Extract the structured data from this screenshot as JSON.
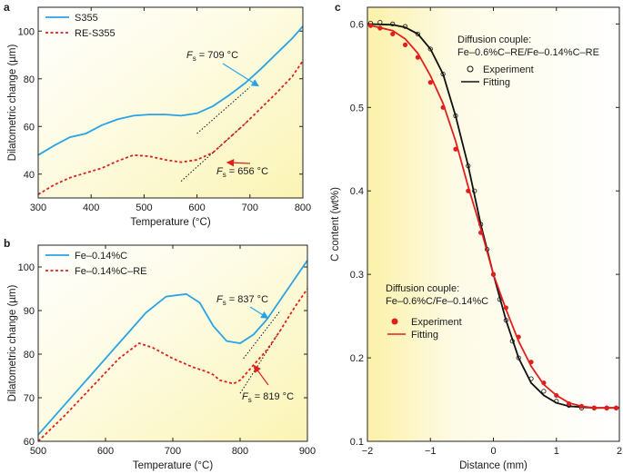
{
  "colors": {
    "blue": "#2aa3e6",
    "red": "#e0201c",
    "black": "#111111",
    "bg_yellow": "#fbf5b8",
    "bg_white": "#ffffff"
  },
  "chart_data": [
    {
      "panel": "a",
      "type": "line",
      "xlabel": "Temperature (°C)",
      "ylabel": "Dilatometric change (µm)",
      "xlim": [
        300,
        800
      ],
      "ylim": [
        30,
        110
      ],
      "xticks": [
        300,
        400,
        500,
        600,
        700,
        800
      ],
      "yticks": [
        40,
        60,
        80,
        100
      ],
      "grid": false,
      "legend_placement": "top-left",
      "series": [
        {
          "name": "S355",
          "style": "solid",
          "color": "blue",
          "x": [
            300,
            330,
            360,
            390,
            420,
            450,
            480,
            510,
            540,
            570,
            600,
            630,
            660,
            690,
            720,
            750,
            780,
            800
          ],
          "y": [
            48,
            52,
            55.5,
            57,
            60.5,
            63,
            64.5,
            65,
            65,
            64.5,
            65.5,
            68.5,
            73,
            78,
            84,
            90.5,
            97,
            102
          ]
        },
        {
          "name": "RE-S355",
          "style": "dashed",
          "color": "red",
          "x": [
            300,
            330,
            360,
            390,
            420,
            450,
            480,
            510,
            540,
            570,
            600,
            630,
            660,
            690,
            720,
            750,
            780,
            800
          ],
          "y": [
            31.5,
            35.5,
            38.5,
            40.5,
            42.5,
            45.5,
            48,
            47.5,
            46,
            45,
            46,
            49,
            55,
            61,
            67.5,
            74,
            81,
            87.5
          ]
        }
      ],
      "tangents": [
        {
          "x": [
            600,
            700
          ],
          "y": [
            57,
            76.5
          ]
        },
        {
          "x": [
            570,
            700
          ],
          "y": [
            37,
            63
          ]
        }
      ],
      "annotations": [
        {
          "var": "F",
          "sub": "s",
          "text": " = 709 °C",
          "x": 709,
          "y": 78
        },
        {
          "var": "F",
          "sub": "s",
          "text": " = 656 °C",
          "x": 656,
          "y": 46
        }
      ]
    },
    {
      "panel": "b",
      "type": "line",
      "xlabel": "Temperature (°C)",
      "ylabel": "Dilatometric change (µm)",
      "xlim": [
        500,
        900
      ],
      "ylim": [
        60,
        105
      ],
      "xticks": [
        500,
        600,
        700,
        800,
        900
      ],
      "yticks": [
        60,
        70,
        80,
        90,
        100
      ],
      "grid": false,
      "legend_placement": "top-left",
      "series": [
        {
          "name": "Fe–0.14%C",
          "style": "solid",
          "color": "blue",
          "x": [
            500,
            540,
            580,
            620,
            660,
            690,
            720,
            740,
            760,
            780,
            800,
            820,
            840,
            860,
            880,
            900
          ],
          "y": [
            61.5,
            68.5,
            75.5,
            82.5,
            89.5,
            93.2,
            93.8,
            91.8,
            86.5,
            83,
            82.5,
            84.5,
            88,
            92.5,
            97,
            101.5
          ]
        },
        {
          "name": "Fe–0.14%C–RE",
          "style": "dashed",
          "color": "red",
          "x": [
            500,
            540,
            580,
            620,
            650,
            670,
            700,
            730,
            750,
            760,
            770,
            790,
            800,
            820,
            840,
            860,
            880,
            900
          ],
          "y": [
            60,
            66,
            72.5,
            79,
            82.5,
            81.5,
            79,
            77,
            76,
            75.3,
            74,
            73.2,
            74,
            77.5,
            81,
            85.5,
            90.5,
            95
          ]
        }
      ],
      "tangents": [
        {
          "x": [
            805,
            860
          ],
          "y": [
            79,
            90
          ]
        },
        {
          "x": [
            800,
            860
          ],
          "y": [
            71,
            85.5
          ]
        }
      ],
      "annotations": [
        {
          "var": "F",
          "sub": "s",
          "text": " = 837 °C",
          "x": 837,
          "y": 88
        },
        {
          "var": "F",
          "sub": "s",
          "text": " = 819 °C",
          "x": 819,
          "y": 78
        }
      ]
    },
    {
      "panel": "c",
      "type": "scatter",
      "xlabel": "Distance (mm)",
      "ylabel": "C content (wt%)",
      "xlim": [
        -2,
        2
      ],
      "ylim": [
        0.1,
        0.62
      ],
      "xticks": [
        -2,
        -1,
        0,
        1,
        2
      ],
      "yticks": [
        0.1,
        0.2,
        0.3,
        0.4,
        0.5,
        0.6
      ],
      "grid": false,
      "series": [
        {
          "group": "Diffusion couple: Fe–0.6%C–RE/Fe–0.14%C–RE",
          "name": "Experiment",
          "style": "open-circle",
          "color": "black",
          "x": [
            -1.95,
            -1.8,
            -1.6,
            -1.4,
            -1.2,
            -1.0,
            -0.8,
            -0.6,
            -0.4,
            -0.3,
            -0.2,
            -0.1,
            0.0,
            0.1,
            0.2,
            0.3,
            0.4,
            0.6,
            0.8,
            1.0,
            1.2,
            1.4,
            1.6,
            1.8,
            1.95
          ],
          "y": [
            0.601,
            0.602,
            0.6,
            0.597,
            0.588,
            0.57,
            0.54,
            0.49,
            0.43,
            0.4,
            0.36,
            0.33,
            0.3,
            0.27,
            0.245,
            0.22,
            0.2,
            0.175,
            0.16,
            0.148,
            0.143,
            0.14,
            0.14,
            0.14,
            0.14
          ]
        },
        {
          "group": "Diffusion couple: Fe–0.6%C–RE/Fe–0.14%C–RE",
          "name": "Fitting",
          "style": "solid",
          "color": "black",
          "x": [
            -2.0,
            -1.6,
            -1.4,
            -1.2,
            -1.0,
            -0.8,
            -0.6,
            -0.4,
            -0.2,
            0.0,
            0.2,
            0.4,
            0.6,
            0.8,
            1.0,
            1.2,
            1.4,
            1.6,
            2.0
          ],
          "y": [
            0.6,
            0.599,
            0.596,
            0.588,
            0.57,
            0.54,
            0.49,
            0.43,
            0.36,
            0.3,
            0.245,
            0.2,
            0.17,
            0.155,
            0.146,
            0.142,
            0.141,
            0.14,
            0.14
          ]
        },
        {
          "group": "Diffusion couple: Fe–0.6%C/Fe–0.14%C",
          "name": "Experiment",
          "style": "filled-circle",
          "color": "red",
          "x": [
            -1.95,
            -1.8,
            -1.6,
            -1.4,
            -1.2,
            -1.0,
            -0.8,
            -0.6,
            -0.4,
            -0.2,
            0.0,
            0.2,
            0.4,
            0.6,
            0.8,
            1.0,
            1.2,
            1.4,
            1.6,
            1.8,
            1.95
          ],
          "y": [
            0.598,
            0.595,
            0.588,
            0.575,
            0.56,
            0.53,
            0.5,
            0.45,
            0.4,
            0.35,
            0.3,
            0.26,
            0.225,
            0.195,
            0.17,
            0.155,
            0.145,
            0.142,
            0.14,
            0.14,
            0.14
          ]
        },
        {
          "group": "Diffusion couple: Fe–0.6%C/Fe–0.14%C",
          "name": "Fitting",
          "style": "solid",
          "color": "red",
          "x": [
            -2.0,
            -1.6,
            -1.4,
            -1.2,
            -1.0,
            -0.8,
            -0.6,
            -0.4,
            -0.2,
            0.0,
            0.2,
            0.4,
            0.6,
            0.8,
            1.0,
            1.2,
            1.4,
            1.6,
            2.0
          ],
          "y": [
            0.599,
            0.592,
            0.582,
            0.565,
            0.538,
            0.505,
            0.46,
            0.405,
            0.355,
            0.3,
            0.258,
            0.22,
            0.19,
            0.168,
            0.155,
            0.146,
            0.142,
            0.14,
            0.14
          ]
        }
      ],
      "legends": [
        {
          "title": "Diffusion couple:",
          "subtitle": "Fe–0.6%C–RE/Fe–0.14%C–RE",
          "items": [
            "Experiment",
            "Fitting"
          ],
          "color": "black",
          "placement": "top-right"
        },
        {
          "title": "Diffusion couple:",
          "subtitle": "Fe–0.6%C/Fe–0.14%C",
          "items": [
            "Experiment",
            "Fitting"
          ],
          "color": "red",
          "placement": "center-left"
        }
      ]
    }
  ]
}
